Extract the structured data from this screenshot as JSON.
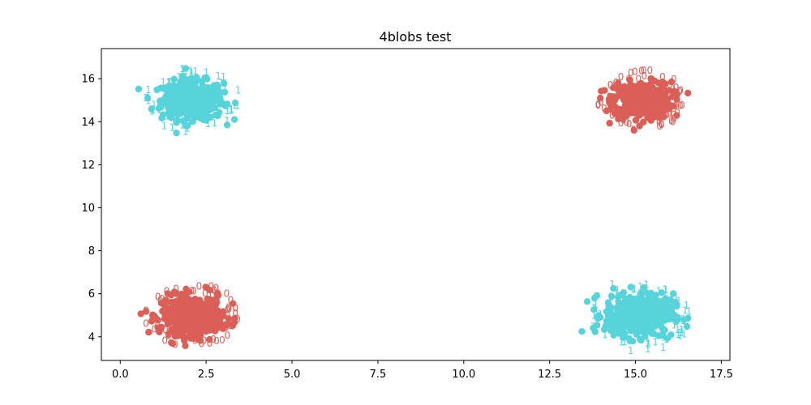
{
  "chart_data": {
    "type": "scatter",
    "title": "4blobs test",
    "xlabel": "",
    "ylabel": "",
    "xlim": [
      -0.55,
      17.75
    ],
    "ylim": [
      2.9,
      17.4
    ],
    "xticks": [
      "0.0",
      "2.5",
      "5.0",
      "7.5",
      "10.0",
      "12.5",
      "15.0",
      "17.5"
    ],
    "yticks": [
      "4",
      "6",
      "8",
      "10",
      "12",
      "14",
      "16"
    ],
    "grid": false,
    "colors": {
      "class_0": "#db5f57",
      "class_1": "#57d3db"
    },
    "marker_labels": {
      "class_0": "0",
      "class_1": "1"
    },
    "blobs": [
      {
        "class": "1",
        "center": [
          2.1,
          15.0
        ],
        "spread": [
          0.45,
          0.45
        ],
        "extent_x": [
          0.3,
          3.8
        ],
        "extent_y": [
          13.3,
          17.1
        ]
      },
      {
        "class": "0",
        "center": [
          15.2,
          15.0
        ],
        "spread": [
          0.42,
          0.42
        ],
        "extent_x": [
          13.8,
          16.6
        ],
        "extent_y": [
          13.6,
          16.9
        ]
      },
      {
        "class": "0",
        "center": [
          2.1,
          5.0
        ],
        "spread": [
          0.45,
          0.45
        ],
        "extent_x": [
          0.6,
          3.7
        ],
        "extent_y": [
          3.5,
          6.7
        ]
      },
      {
        "class": "1",
        "center": [
          15.1,
          5.0
        ],
        "spread": [
          0.5,
          0.5
        ],
        "extent_x": [
          12.8,
          16.9
        ],
        "extent_y": [
          3.1,
          7.1
        ]
      }
    ]
  }
}
